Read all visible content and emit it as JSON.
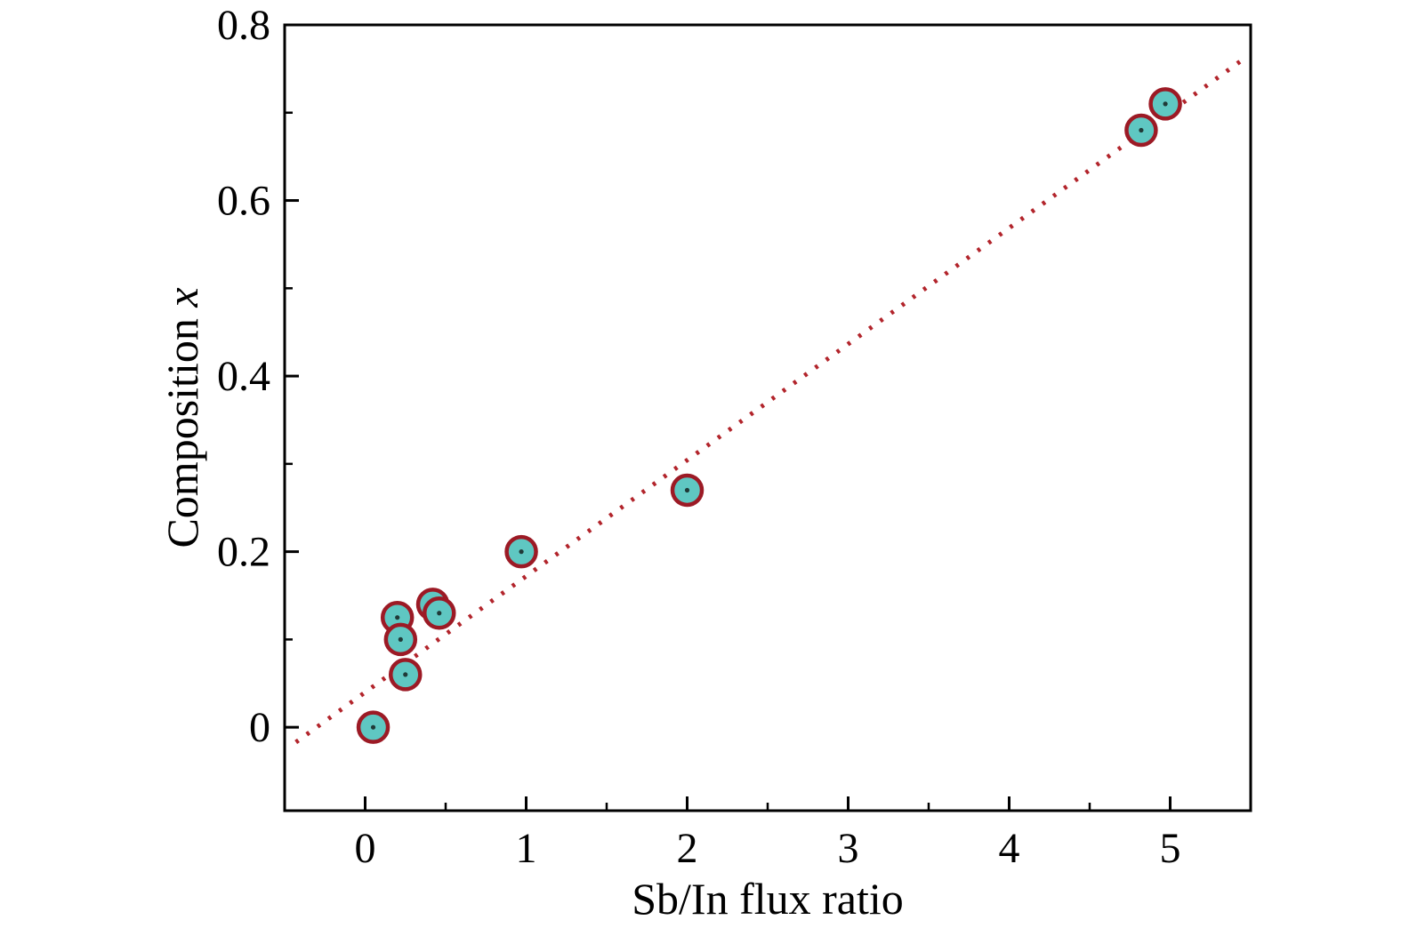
{
  "chart_data": {
    "type": "scatter",
    "title": "",
    "xlabel": "Sb/In flux ratio",
    "ylabel": "Composition x",
    "ylabel_parts": {
      "text": "Composition ",
      "italic": "x"
    },
    "xlim": [
      -0.5,
      5.5
    ],
    "ylim": [
      -0.095,
      0.8
    ],
    "xticks": [
      0,
      1,
      2,
      3,
      4,
      5
    ],
    "xticks_minor": [
      0.5,
      1.5,
      2.5,
      3.5,
      4.5
    ],
    "yticks": [
      0,
      0.2,
      0.4,
      0.6,
      0.8
    ],
    "yticks_minor": [
      0.1,
      0.3,
      0.5,
      0.7
    ],
    "grid": false,
    "legend": "none",
    "frame_color": "#000000",
    "background": "#ffffff",
    "series": [
      {
        "name": "measured-composition",
        "type": "scatter",
        "marker": "circle",
        "marker_fill": "#5fc7c2",
        "marker_edge": "#9c1a25",
        "center_dot": "#203a38",
        "points": [
          [
            0.05,
            0.0
          ],
          [
            0.2,
            0.125
          ],
          [
            0.22,
            0.1
          ],
          [
            0.25,
            0.06
          ],
          [
            0.42,
            0.14
          ],
          [
            0.46,
            0.13
          ],
          [
            0.97,
            0.2
          ],
          [
            2.0,
            0.27
          ],
          [
            4.82,
            0.68
          ],
          [
            4.97,
            0.71
          ]
        ]
      },
      {
        "name": "linear-fit",
        "type": "line",
        "style": "dotted",
        "color": "#b2242b",
        "x": [
          -0.43,
          5.47
        ],
        "y": [
          -0.017,
          0.763
        ]
      }
    ]
  }
}
